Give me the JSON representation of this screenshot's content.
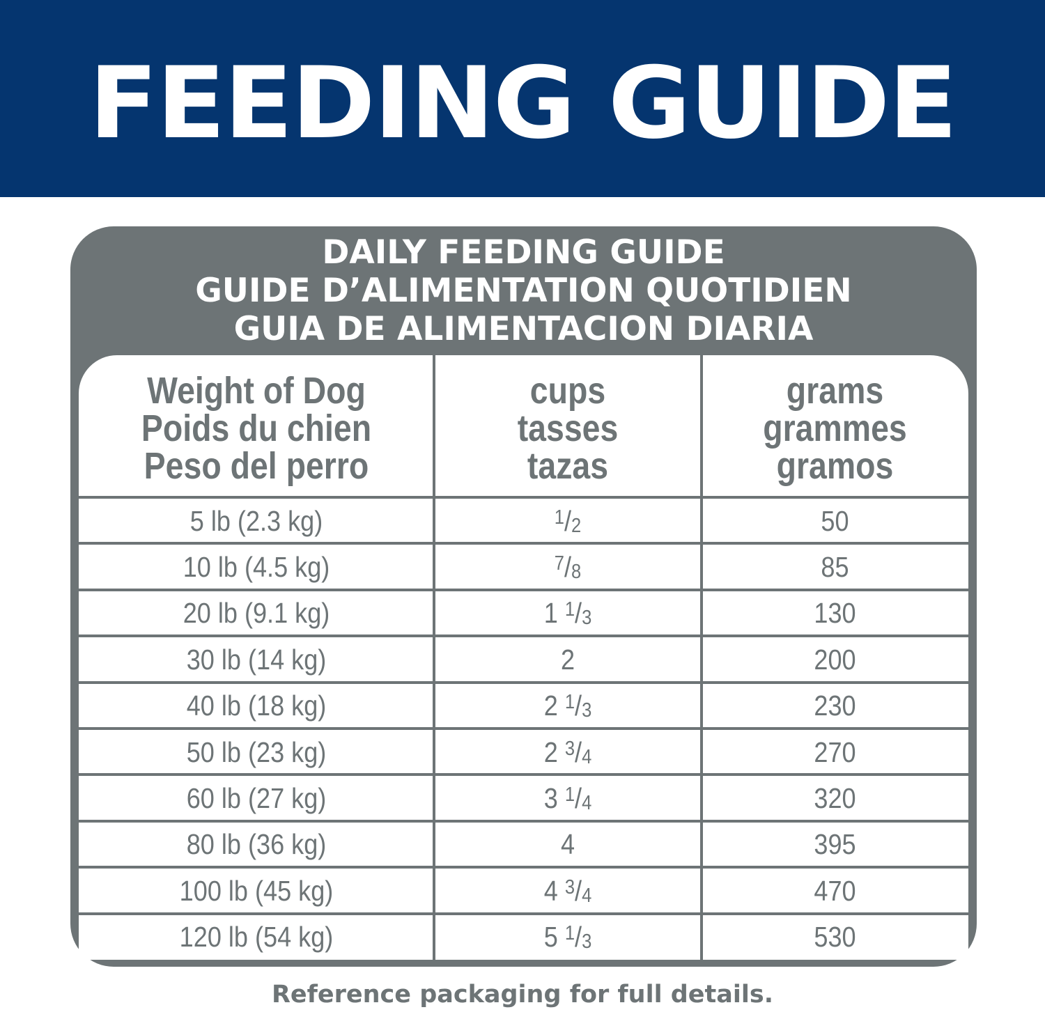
{
  "banner": {
    "title": "FEEDING GUIDE"
  },
  "guide": {
    "title_lines": [
      "DAILY FEEDING GUIDE",
      "GUIDE D’ALIMENTATION QUOTIDIEN",
      "GUIA DE ALIMENTACION DIARIA"
    ],
    "columns": [
      {
        "lines": [
          "Weight of Dog",
          "Poids du chien",
          "Peso del perro"
        ]
      },
      {
        "lines": [
          "cups",
          "tasses",
          "tazas"
        ]
      },
      {
        "lines": [
          "grams",
          "grammes",
          "gramos"
        ]
      }
    ],
    "rows": [
      {
        "weight": "5 lb (2.3 kg)",
        "cups_whole": "",
        "cups_num": "1",
        "cups_den": "2",
        "grams": "50"
      },
      {
        "weight": "10 lb (4.5 kg)",
        "cups_whole": "",
        "cups_num": "7",
        "cups_den": "8",
        "grams": "85"
      },
      {
        "weight": "20 lb (9.1 kg)",
        "cups_whole": "1",
        "cups_num": "1",
        "cups_den": "3",
        "grams": "130"
      },
      {
        "weight": "30 lb (14 kg)",
        "cups_whole": "2",
        "cups_num": "",
        "cups_den": "",
        "grams": "200"
      },
      {
        "weight": "40 lb (18 kg)",
        "cups_whole": "2",
        "cups_num": "1",
        "cups_den": "3",
        "grams": "230"
      },
      {
        "weight": "50 lb (23 kg)",
        "cups_whole": "2",
        "cups_num": "3",
        "cups_den": "4",
        "grams": "270"
      },
      {
        "weight": "60 lb (27 kg)",
        "cups_whole": "3",
        "cups_num": "1",
        "cups_den": "4",
        "grams": "320"
      },
      {
        "weight": "80 lb (36 kg)",
        "cups_whole": "4",
        "cups_num": "",
        "cups_den": "",
        "grams": "395"
      },
      {
        "weight": "100 lb (45 kg)",
        "cups_whole": "4",
        "cups_num": "3",
        "cups_den": "4",
        "grams": "470"
      },
      {
        "weight": "120 lb (54 kg)",
        "cups_whole": "5",
        "cups_num": "1",
        "cups_den": "3",
        "grams": "530"
      }
    ]
  },
  "footer": {
    "note": "Reference packaging for full details."
  },
  "colors": {
    "banner": "#05356f",
    "gray": "#6d7476"
  }
}
